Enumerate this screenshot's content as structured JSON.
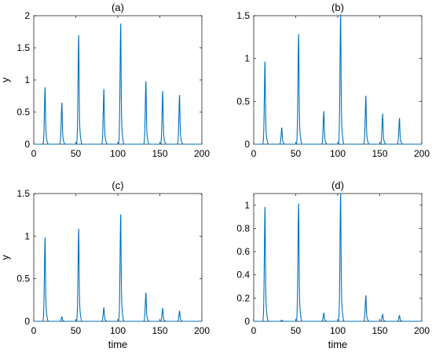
{
  "chart_data": [
    {
      "type": "line",
      "title": "(a)",
      "xlabel": "",
      "ylabel": "y",
      "xlim": [
        0,
        200
      ],
      "ylim": [
        0,
        2
      ],
      "xticks": [
        0,
        50,
        100,
        150,
        200
      ],
      "yticks": [
        0,
        0.5,
        1,
        1.5,
        2
      ],
      "yticklabels": [
        "0",
        "0.5",
        "1",
        "1.5",
        "2"
      ],
      "line_color": "#0072BD",
      "peaks": [
        {
          "t": 13.5,
          "h": 0.88
        },
        {
          "t": 33.5,
          "h": 0.64
        },
        {
          "t": 53.5,
          "h": 1.69
        },
        {
          "t": 83.5,
          "h": 0.85
        },
        {
          "t": 103.5,
          "h": 1.87
        },
        {
          "t": 133.5,
          "h": 0.97
        },
        {
          "t": 153.5,
          "h": 0.82
        },
        {
          "t": 173.5,
          "h": 0.76
        }
      ]
    },
    {
      "type": "line",
      "title": "(b)",
      "xlabel": "",
      "ylabel": "",
      "xlim": [
        0,
        200
      ],
      "ylim": [
        0,
        1.5
      ],
      "xticks": [
        0,
        50,
        100,
        150,
        200
      ],
      "yticks": [
        0,
        0.5,
        1,
        1.5
      ],
      "yticklabels": [
        "0",
        "0.5",
        "1",
        "1.5"
      ],
      "line_color": "#0072BD",
      "peaks": [
        {
          "t": 13.5,
          "h": 0.96
        },
        {
          "t": 33.5,
          "h": 0.19
        },
        {
          "t": 53.5,
          "h": 1.28
        },
        {
          "t": 83.5,
          "h": 0.38
        },
        {
          "t": 103.5,
          "h": 1.51
        },
        {
          "t": 133.5,
          "h": 0.56
        },
        {
          "t": 153.5,
          "h": 0.35
        },
        {
          "t": 173.5,
          "h": 0.3
        }
      ]
    },
    {
      "type": "line",
      "title": "(c)",
      "xlabel": "time",
      "ylabel": "y",
      "xlim": [
        0,
        200
      ],
      "ylim": [
        0,
        1.5
      ],
      "xticks": [
        0,
        50,
        100,
        150,
        200
      ],
      "yticks": [
        0,
        0.5,
        1,
        1.5
      ],
      "yticklabels": [
        "0",
        "0.5",
        "1",
        "1.5"
      ],
      "line_color": "#0072BD",
      "peaks": [
        {
          "t": 13.5,
          "h": 0.98
        },
        {
          "t": 33.5,
          "h": 0.05
        },
        {
          "t": 53.5,
          "h": 1.08
        },
        {
          "t": 83.5,
          "h": 0.16
        },
        {
          "t": 103.5,
          "h": 1.25
        },
        {
          "t": 133.5,
          "h": 0.33
        },
        {
          "t": 153.5,
          "h": 0.15
        },
        {
          "t": 173.5,
          "h": 0.12
        }
      ]
    },
    {
      "type": "line",
      "title": "(d)",
      "xlabel": "time",
      "ylabel": "",
      "xlim": [
        0,
        200
      ],
      "ylim": [
        0,
        1.1
      ],
      "xticks": [
        0,
        50,
        100,
        150,
        200
      ],
      "yticks": [
        0,
        0.2,
        0.4,
        0.6,
        0.8,
        1
      ],
      "yticklabels": [
        "0",
        "0.2",
        "0.4",
        "0.6",
        "0.8",
        "1"
      ],
      "line_color": "#0072BD",
      "peaks": [
        {
          "t": 13.5,
          "h": 0.98
        },
        {
          "t": 33.5,
          "h": 0.01
        },
        {
          "t": 53.5,
          "h": 1.01
        },
        {
          "t": 83.5,
          "h": 0.07
        },
        {
          "t": 103.5,
          "h": 1.1
        },
        {
          "t": 133.5,
          "h": 0.22
        },
        {
          "t": 153.5,
          "h": 0.06
        },
        {
          "t": 173.5,
          "h": 0.05
        }
      ]
    }
  ]
}
